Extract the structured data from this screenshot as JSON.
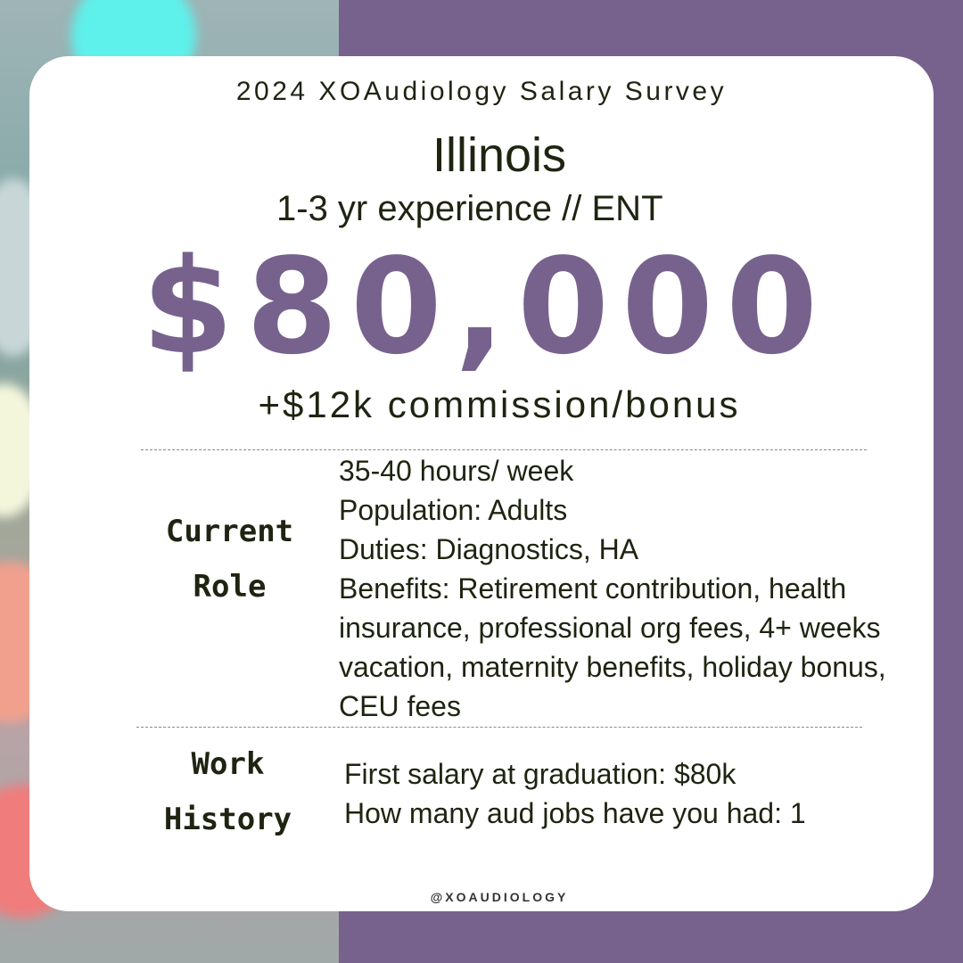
{
  "header": {
    "title": "2024 XOAudiology Salary Survey",
    "location": "Illinois",
    "experience": "1-3 yr experience // ENT"
  },
  "salary": "$80,000",
  "bonus": "+$12k commission/bonus",
  "current_role": {
    "label": [
      "Current",
      "Role"
    ],
    "lines": [
      "35-40 hours/ week",
      "Population: Adults",
      "Duties: Diagnostics, HA",
      "Benefits: Retirement contribution, health insurance, professional org fees, 4+ weeks vacation, maternity benefits, holiday bonus, CEU fees"
    ]
  },
  "work_history": {
    "label": [
      "Work",
      "History"
    ],
    "lines": [
      "First salary at graduation: $80k",
      "How many aud jobs have you had: 1"
    ]
  },
  "footer": {
    "handle": "@XOAUDIOLOGY"
  }
}
